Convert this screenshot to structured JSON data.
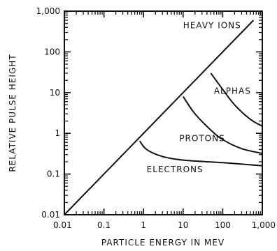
{
  "chart_data": {
    "type": "line",
    "xscale": "log",
    "yscale": "log",
    "xlim": [
      0.01,
      1000
    ],
    "ylim": [
      0.01,
      1000
    ],
    "xlabel": "PARTICLE ENERGY IN MEV",
    "ylabel": "RELATIVE PULSE HEIGHT",
    "x_tick_labels": [
      "0.01",
      "0.1",
      "1",
      "10",
      "100",
      "1,000"
    ],
    "y_tick_labels": [
      "0.01",
      "0.1",
      "1",
      "10",
      "100",
      "1,000"
    ],
    "grid": false,
    "series": [
      {
        "name": "HEAVY IONS",
        "points": [
          [
            0.01,
            0.01
          ],
          [
            600,
            600
          ]
        ]
      },
      {
        "name": "ALPHAS",
        "points": [
          [
            50,
            30
          ],
          [
            100,
            12
          ],
          [
            200,
            5
          ],
          [
            500,
            2.2
          ],
          [
            1000,
            1.5
          ]
        ]
      },
      {
        "name": "PROTONS",
        "points": [
          [
            10,
            8
          ],
          [
            20,
            3
          ],
          [
            50,
            1.2
          ],
          [
            100,
            0.7
          ],
          [
            300,
            0.42
          ],
          [
            1000,
            0.32
          ]
        ]
      },
      {
        "name": "ELECTRONS",
        "points": [
          [
            0.8,
            0.65
          ],
          [
            1.2,
            0.4
          ],
          [
            3,
            0.27
          ],
          [
            10,
            0.22
          ],
          [
            100,
            0.19
          ],
          [
            1000,
            0.16
          ]
        ]
      }
    ],
    "curve_labels": [
      {
        "text": "HEAVY IONS",
        "x": 10,
        "y": 450
      },
      {
        "text": "ALPHAS",
        "x": 60,
        "y": 11
      },
      {
        "text": "PROTONS",
        "x": 8,
        "y": 0.75
      },
      {
        "text": "ELECTRONS",
        "x": 1.2,
        "y": 0.13
      }
    ]
  }
}
